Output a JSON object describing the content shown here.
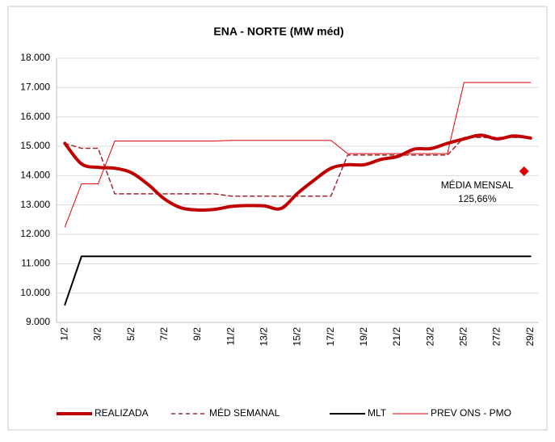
{
  "chart_data": {
    "type": "line",
    "title": "ENA - NORTE (MW méd)",
    "categories": [
      "1/2",
      null,
      "3/2",
      null,
      "5/2",
      null,
      "7/2",
      null,
      "9/2",
      null,
      "11/2",
      null,
      "13/2",
      null,
      "15/2",
      null,
      "17/2",
      null,
      "19/2",
      null,
      "21/2",
      null,
      "23/2",
      null,
      "25/2",
      null,
      "27/2",
      null,
      "29/2"
    ],
    "ylim": [
      9000,
      18000
    ],
    "yticks": [
      {
        "value": 9000,
        "label": "9.000"
      },
      {
        "value": 10000,
        "label": "10.000"
      },
      {
        "value": 11000,
        "label": "11.000"
      },
      {
        "value": 12000,
        "label": "12.000"
      },
      {
        "value": 13000,
        "label": "13.000"
      },
      {
        "value": 14000,
        "label": "14.000"
      },
      {
        "value": 15000,
        "label": "15.000"
      },
      {
        "value": 16000,
        "label": "16.000"
      },
      {
        "value": 17000,
        "label": "17.000"
      },
      {
        "value": 18000,
        "label": "18.000"
      }
    ],
    "grid": true,
    "legend": "bottom",
    "series": [
      {
        "name": "REALIZADA",
        "color": "#c00000",
        "width": 4,
        "dash": "none",
        "smooth": true,
        "values": [
          15100,
          14400,
          14280,
          14250,
          14100,
          13700,
          13200,
          12900,
          12830,
          12850,
          12950,
          12980,
          12970,
          12880,
          13400,
          13850,
          14250,
          14370,
          14370,
          14550,
          14650,
          14900,
          14920,
          15100,
          15250,
          15380,
          15250,
          15350,
          15280
        ]
      },
      {
        "name": "MÉD SEMANAL",
        "color": "#a0282c",
        "width": 1.5,
        "dash": "5 4",
        "smooth": false,
        "values": [
          15100,
          14930,
          14930,
          13380,
          13380,
          13380,
          13380,
          13380,
          13380,
          13380,
          13300,
          13300,
          13300,
          13300,
          13300,
          13300,
          13300,
          14700,
          14700,
          14700,
          14700,
          14700,
          14700,
          14700,
          15300,
          15300,
          15300,
          15300,
          15300
        ]
      },
      {
        "name": "MLT",
        "color": "#000000",
        "width": 2,
        "dash": "none",
        "smooth": false,
        "values": [
          9600,
          11250,
          11250,
          11250,
          11250,
          11250,
          11250,
          11250,
          11250,
          11250,
          11250,
          11250,
          11250,
          11250,
          11250,
          11250,
          11250,
          11250,
          11250,
          11250,
          11250,
          11250,
          11250,
          11250,
          11250,
          11250,
          11250,
          11250,
          11250
        ]
      },
      {
        "name": "PREV ONS - PMO",
        "color": "#e00000",
        "width": 1,
        "dash": "none",
        "smooth": false,
        "values": [
          12250,
          13720,
          13720,
          15180,
          15180,
          15180,
          15180,
          15180,
          15180,
          15180,
          15200,
          15200,
          15200,
          15200,
          15200,
          15200,
          15200,
          14750,
          14750,
          14750,
          14750,
          14750,
          14750,
          14750,
          17170,
          17170,
          17170,
          17170,
          17170
        ]
      }
    ],
    "annotation": {
      "lines": [
        "MÉDIA MENSAL",
        "125,66%"
      ],
      "value": 14150,
      "color": "#e00000"
    }
  }
}
